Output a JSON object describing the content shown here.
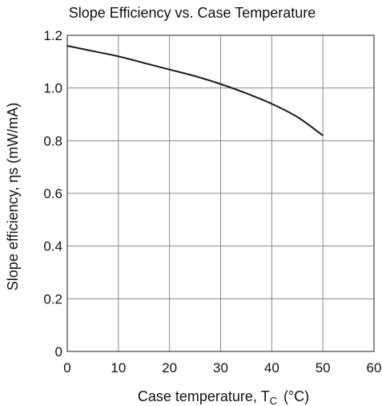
{
  "chart_data": {
    "type": "line",
    "title": "Slope Efficiency vs. Case Temperature",
    "xlabel": "Case temperature, T",
    "xlabel_sub": "C",
    "xlabel_unit": "(°C)",
    "ylabel": "Slope efficiency, ηs (mW/mA)",
    "xlim": [
      0,
      60
    ],
    "ylim": [
      0,
      1.2
    ],
    "x_ticks": [
      "0",
      "10",
      "20",
      "30",
      "40",
      "50",
      "60"
    ],
    "y_ticks": [
      "0",
      "0.2",
      "0.4",
      "0.6",
      "0.8",
      "1.0",
      "1.2"
    ],
    "grid": true,
    "series": [
      {
        "x": [
          0,
          5,
          10,
          15,
          20,
          25,
          30,
          35,
          40,
          45,
          50
        ],
        "y": [
          1.16,
          1.14,
          1.12,
          1.095,
          1.07,
          1.045,
          1.015,
          0.98,
          0.94,
          0.89,
          0.82
        ]
      }
    ]
  }
}
